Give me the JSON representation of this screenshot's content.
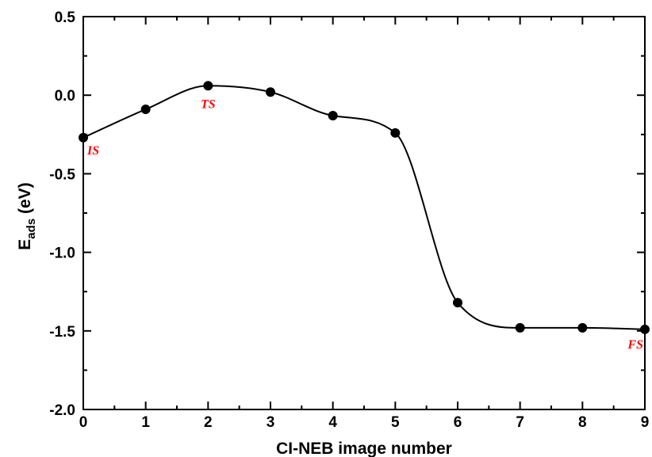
{
  "chart_data": {
    "type": "line",
    "xlabel": "CI-NEB image number",
    "ylabel": {
      "main": "E",
      "sub": "ads",
      "rest": " (eV)"
    },
    "xlim": [
      0,
      9
    ],
    "ylim": [
      -2.0,
      0.5
    ],
    "x_ticks": [
      "0",
      "1",
      "2",
      "3",
      "4",
      "5",
      "6",
      "7",
      "8",
      "9"
    ],
    "y_ticks": [
      "0.5",
      "0.0",
      "-0.5",
      "-1.0",
      "-1.5",
      "-2.0"
    ],
    "y_tick_values": [
      0.5,
      0.0,
      -0.5,
      -1.0,
      -1.5,
      -2.0
    ],
    "grid": false,
    "series": [
      {
        "x": [
          0,
          1,
          2,
          3,
          4,
          5,
          6,
          7,
          8,
          9
        ],
        "y": [
          -0.27,
          -0.09,
          0.06,
          0.02,
          -0.13,
          -0.24,
          -1.32,
          -1.48,
          -1.48,
          -1.49
        ],
        "color": "#000000",
        "marker": "circle"
      }
    ],
    "annotations": [
      {
        "text": "IS",
        "x": 0,
        "y": -0.27,
        "color": "#ff0000"
      },
      {
        "text": "TS",
        "x": 2,
        "y": 0.06,
        "color": "#ff0000"
      },
      {
        "text": "FS",
        "x": 9,
        "y": -1.49,
        "color": "#ff0000"
      }
    ]
  }
}
